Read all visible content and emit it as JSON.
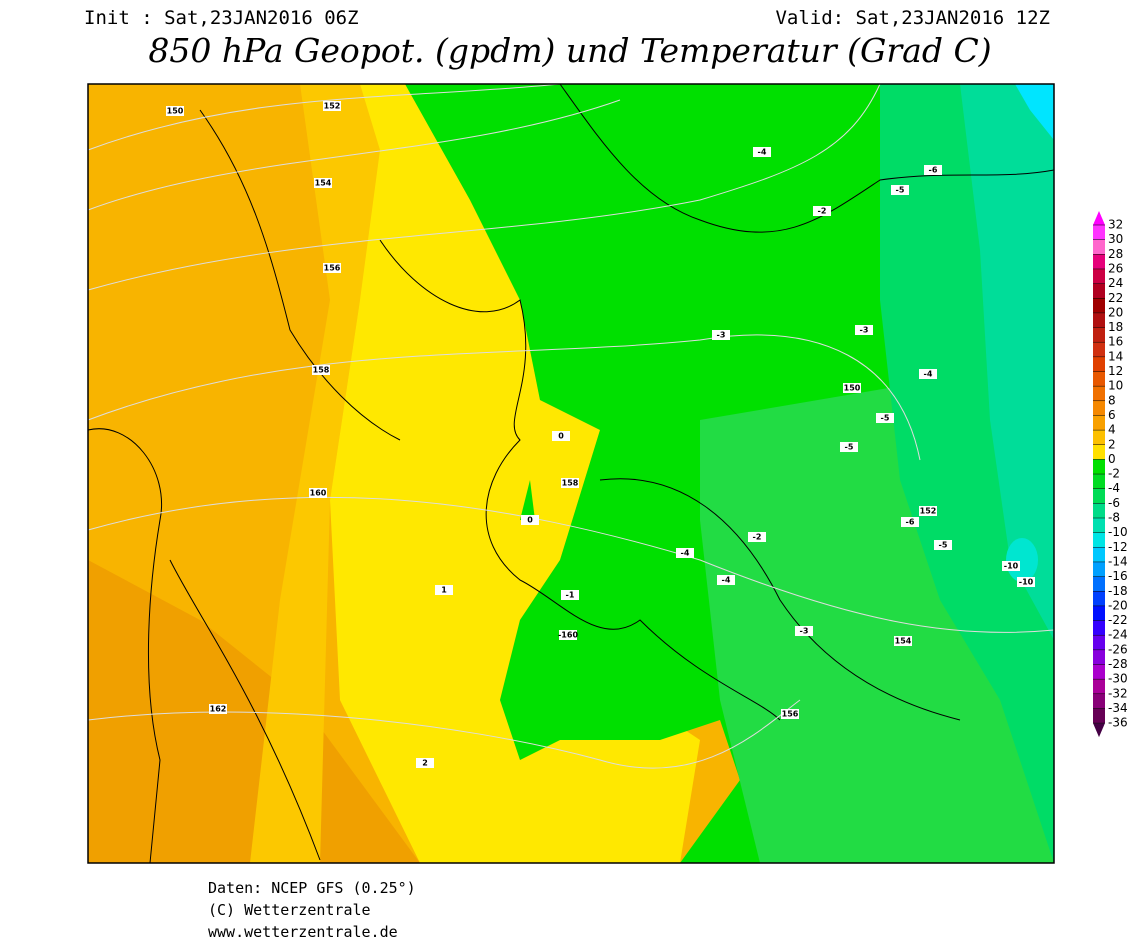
{
  "header": {
    "init": "Init : Sat,23JAN2016 06Z",
    "valid": "Valid: Sat,23JAN2016 12Z",
    "title": "850 hPa Geopot. (gpdm) und Temperatur (Grad C)"
  },
  "map": {
    "labels": [
      150,
      152,
      154,
      156,
      158,
      160,
      162,
      -4,
      -6,
      -5,
      -2,
      -3,
      -3,
      150,
      -4,
      -5,
      -5,
      0,
      158,
      0,
      -4,
      -4,
      -2,
      -6,
      152,
      -5,
      -10,
      -10,
      154,
      -3,
      -1,
      -160,
      156,
      2,
      1
    ]
  },
  "colorbar": {
    "levels": [
      32,
      30,
      28,
      26,
      24,
      22,
      20,
      18,
      16,
      14,
      12,
      10,
      8,
      6,
      4,
      2,
      0,
      -2,
      -4,
      -6,
      -8,
      -10,
      -12,
      -14,
      -16,
      -18,
      -20,
      -22,
      -24,
      -26,
      -28,
      -30,
      -32,
      -34,
      -36
    ],
    "colors": [
      "#ff00ff",
      "#ff33ff",
      "#ff66cc",
      "#e6007a",
      "#cc0044",
      "#b00020",
      "#a00000",
      "#b01010",
      "#c02010",
      "#d03010",
      "#e04000",
      "#e85800",
      "#f07000",
      "#f58800",
      "#f8a000",
      "#fcc000",
      "#ffe000",
      "#00e000",
      "#00dc22",
      "#00dc55",
      "#00dc88",
      "#00e0b0",
      "#00e5e5",
      "#00c8ff",
      "#00a0ff",
      "#0070ff",
      "#0040ff",
      "#0010ff",
      "#3300ff",
      "#6600ee",
      "#8800dd",
      "#aa00cc",
      "#aa0099",
      "#880077",
      "#660055",
      "#440044"
    ]
  },
  "footer": [
    "Daten: NCEP GFS (0.25°)",
    "(C) Wetterzentrale",
    "www.wetterzentrale.de"
  ]
}
